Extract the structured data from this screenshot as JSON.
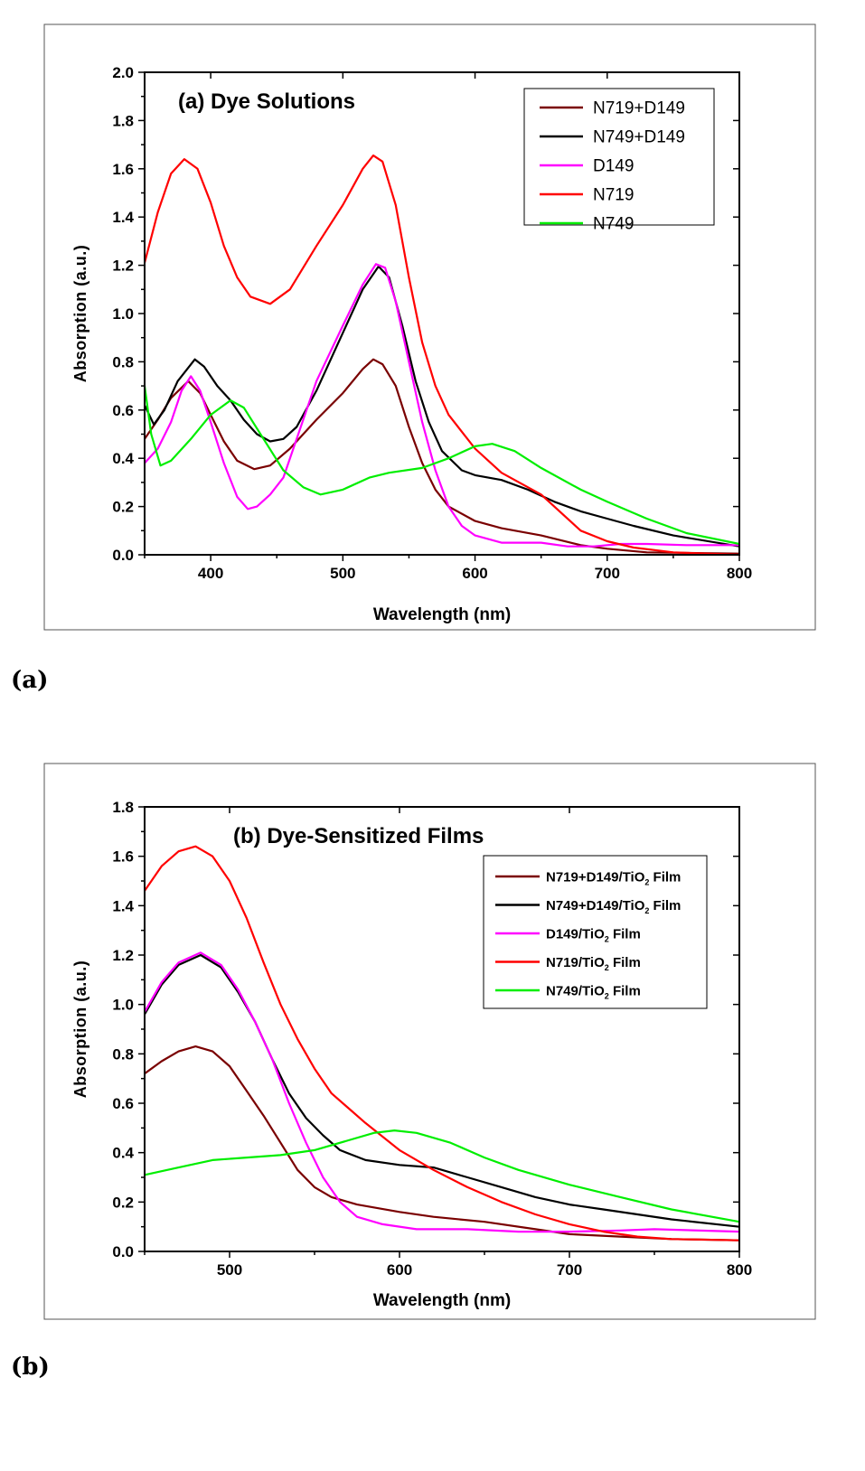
{
  "panel_labels": [
    "(a)",
    "(b)"
  ],
  "colors": {
    "N719+D149": "#7a0000",
    "N749+D149": "#000000",
    "D149": "#ff00ff",
    "N719": "#ff0000",
    "N749": "#00ee00"
  },
  "chart_data": [
    {
      "type": "line",
      "title": "(a) Dye Solutions",
      "xlabel": "Wavelength (nm)",
      "ylabel": "Absorption (a.u.)",
      "xlim": [
        350,
        800
      ],
      "ylim": [
        0,
        2.0
      ],
      "xticks": [
        400,
        500,
        600,
        700,
        800
      ],
      "yticks": [
        "0.0",
        "0.2",
        "0.4",
        "0.6",
        "0.8",
        "1.0",
        "1.2",
        "1.4",
        "1.6",
        "1.8",
        "2.0"
      ],
      "legend_position": "top-right",
      "grid": false,
      "series": [
        {
          "name": "N719+D149",
          "color": "#7a0000",
          "x": [
            350,
            360,
            370,
            383,
            392,
            400,
            410,
            420,
            433,
            445,
            460,
            480,
            500,
            515,
            523,
            530,
            540,
            550,
            560,
            570,
            580,
            600,
            620,
            650,
            680,
            700,
            730,
            800
          ],
          "y": [
            0.48,
            0.56,
            0.65,
            0.72,
            0.67,
            0.58,
            0.47,
            0.39,
            0.355,
            0.37,
            0.44,
            0.56,
            0.67,
            0.77,
            0.81,
            0.79,
            0.7,
            0.53,
            0.38,
            0.27,
            0.2,
            0.14,
            0.11,
            0.08,
            0.04,
            0.025,
            0.01,
            0.005
          ]
        },
        {
          "name": "N749+D149",
          "color": "#000000",
          "x": [
            350,
            357,
            365,
            375,
            388,
            395,
            405,
            415,
            425,
            435,
            445,
            455,
            465,
            480,
            500,
            515,
            527,
            535,
            545,
            555,
            565,
            575,
            590,
            600,
            620,
            640,
            660,
            680,
            700,
            720,
            750,
            800
          ],
          "y": [
            0.62,
            0.54,
            0.6,
            0.72,
            0.81,
            0.78,
            0.7,
            0.64,
            0.56,
            0.5,
            0.47,
            0.48,
            0.53,
            0.68,
            0.92,
            1.1,
            1.195,
            1.15,
            0.95,
            0.72,
            0.55,
            0.43,
            0.35,
            0.33,
            0.31,
            0.27,
            0.22,
            0.18,
            0.15,
            0.12,
            0.08,
            0.035
          ]
        },
        {
          "name": "D149",
          "color": "#ff00ff",
          "x": [
            350,
            360,
            370,
            378,
            385,
            392,
            400,
            410,
            420,
            428,
            435,
            445,
            455,
            465,
            480,
            500,
            515,
            525,
            532,
            540,
            550,
            560,
            570,
            580,
            590,
            600,
            620,
            650,
            670,
            690,
            710,
            730,
            760,
            800
          ],
          "y": [
            0.38,
            0.44,
            0.55,
            0.68,
            0.74,
            0.68,
            0.55,
            0.38,
            0.24,
            0.19,
            0.2,
            0.25,
            0.32,
            0.48,
            0.72,
            0.95,
            1.12,
            1.205,
            1.19,
            1.05,
            0.8,
            0.55,
            0.35,
            0.2,
            0.12,
            0.08,
            0.05,
            0.05,
            0.035,
            0.035,
            0.045,
            0.045,
            0.04,
            0.04
          ]
        },
        {
          "name": "N719",
          "color": "#ff0000",
          "x": [
            350,
            360,
            370,
            380,
            390,
            400,
            410,
            420,
            430,
            445,
            460,
            480,
            500,
            515,
            523,
            530,
            540,
            550,
            560,
            570,
            580,
            600,
            620,
            650,
            680,
            700,
            720,
            750,
            800
          ],
          "y": [
            1.21,
            1.42,
            1.58,
            1.64,
            1.6,
            1.46,
            1.28,
            1.15,
            1.07,
            1.04,
            1.1,
            1.28,
            1.45,
            1.6,
            1.655,
            1.63,
            1.45,
            1.15,
            0.88,
            0.7,
            0.58,
            0.44,
            0.34,
            0.25,
            0.1,
            0.056,
            0.03,
            0.01,
            0.0
          ]
        },
        {
          "name": "N749",
          "color": "#00ee00",
          "x": [
            350,
            355,
            362,
            370,
            385,
            400,
            415,
            425,
            440,
            455,
            470,
            483,
            500,
            520,
            535,
            560,
            580,
            600,
            613,
            630,
            650,
            680,
            700,
            730,
            760,
            800
          ],
          "y": [
            0.7,
            0.5,
            0.37,
            0.39,
            0.48,
            0.58,
            0.64,
            0.61,
            0.48,
            0.35,
            0.28,
            0.25,
            0.27,
            0.32,
            0.34,
            0.36,
            0.4,
            0.45,
            0.46,
            0.43,
            0.36,
            0.27,
            0.22,
            0.15,
            0.09,
            0.045
          ]
        }
      ]
    },
    {
      "type": "line",
      "title": "(b) Dye-Sensitized Films",
      "xlabel": "Wavelength (nm)",
      "ylabel": "Absorption (a.u.)",
      "xlim": [
        450,
        800
      ],
      "ylim": [
        0,
        1.8
      ],
      "xticks": [
        500,
        600,
        700,
        800
      ],
      "yticks": [
        "0.0",
        "0.2",
        "0.4",
        "0.6",
        "0.8",
        "1.0",
        "1.2",
        "1.4",
        "1.6",
        "1.8"
      ],
      "legend_position": "top-right",
      "grid": false,
      "series": [
        {
          "name": "N719+D149/TiO2 Film",
          "color": "#7a0000",
          "x": [
            450,
            460,
            470,
            480,
            490,
            500,
            510,
            520,
            530,
            540,
            550,
            560,
            575,
            600,
            620,
            650,
            680,
            700,
            730,
            760,
            800
          ],
          "y": [
            0.72,
            0.77,
            0.81,
            0.83,
            0.81,
            0.75,
            0.65,
            0.55,
            0.44,
            0.33,
            0.26,
            0.22,
            0.19,
            0.16,
            0.14,
            0.12,
            0.09,
            0.07,
            0.06,
            0.05,
            0.045
          ]
        },
        {
          "name": "N749+D149/TiO2 Film",
          "color": "#000000",
          "x": [
            450,
            460,
            470,
            483,
            495,
            505,
            515,
            525,
            535,
            545,
            555,
            565,
            580,
            600,
            620,
            640,
            660,
            680,
            700,
            720,
            740,
            760,
            800
          ],
          "y": [
            0.96,
            1.08,
            1.16,
            1.2,
            1.15,
            1.05,
            0.93,
            0.78,
            0.64,
            0.54,
            0.47,
            0.41,
            0.37,
            0.35,
            0.34,
            0.3,
            0.26,
            0.22,
            0.19,
            0.17,
            0.15,
            0.13,
            0.1
          ]
        },
        {
          "name": "D149/TiO2 Film",
          "color": "#ff00ff",
          "x": [
            450,
            460,
            470,
            483,
            495,
            505,
            515,
            525,
            535,
            545,
            555,
            565,
            575,
            590,
            610,
            640,
            670,
            700,
            730,
            750,
            800
          ],
          "y": [
            0.97,
            1.09,
            1.17,
            1.21,
            1.16,
            1.06,
            0.93,
            0.78,
            0.6,
            0.44,
            0.3,
            0.2,
            0.14,
            0.11,
            0.09,
            0.09,
            0.08,
            0.08,
            0.085,
            0.09,
            0.08
          ]
        },
        {
          "name": "N719/TiO2 Film",
          "color": "#ff0000",
          "x": [
            450,
            460,
            470,
            480,
            490,
            500,
            510,
            520,
            530,
            540,
            550,
            560,
            570,
            580,
            600,
            620,
            640,
            660,
            680,
            700,
            720,
            740,
            760,
            800
          ],
          "y": [
            1.46,
            1.56,
            1.62,
            1.64,
            1.6,
            1.5,
            1.35,
            1.17,
            1.0,
            0.86,
            0.74,
            0.64,
            0.58,
            0.52,
            0.41,
            0.33,
            0.26,
            0.2,
            0.15,
            0.11,
            0.08,
            0.06,
            0.05,
            0.045
          ]
        },
        {
          "name": "N749/TiO2 Film",
          "color": "#00ee00",
          "x": [
            450,
            470,
            490,
            510,
            530,
            550,
            570,
            585,
            597,
            610,
            630,
            650,
            670,
            700,
            730,
            760,
            800
          ],
          "y": [
            0.31,
            0.34,
            0.37,
            0.38,
            0.39,
            0.41,
            0.45,
            0.48,
            0.49,
            0.48,
            0.44,
            0.38,
            0.33,
            0.27,
            0.22,
            0.17,
            0.12
          ]
        }
      ]
    }
  ]
}
